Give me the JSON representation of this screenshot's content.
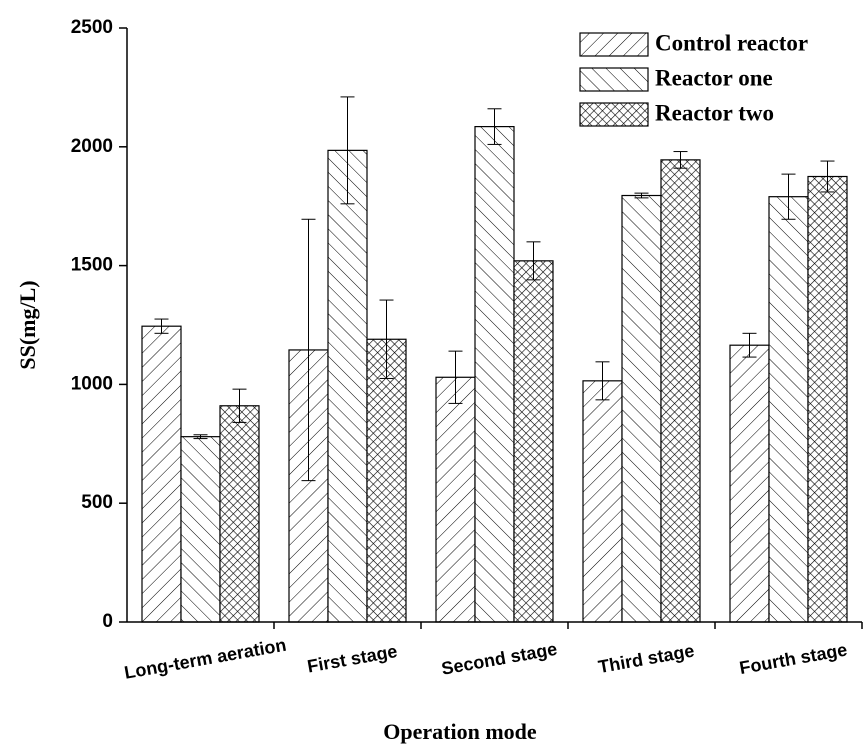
{
  "chart_data": {
    "type": "bar",
    "x_label": "Operation mode",
    "y_label": "SS(mg/L)",
    "categories": [
      "Long-term aeration",
      "First stage",
      "Second stage",
      "Third stage",
      "Fourth stage"
    ],
    "series": [
      {
        "name": "Control reactor",
        "color": "#000000",
        "pattern": "diagonal-up",
        "values": [
          1245,
          1145,
          1030,
          1015,
          1165
        ],
        "errors": [
          30,
          550,
          110,
          80,
          50
        ]
      },
      {
        "name": "Reactor one",
        "color": "#000000",
        "pattern": "diagonal-down",
        "values": [
          780,
          1985,
          2085,
          1795,
          1790
        ],
        "errors": [
          8,
          225,
          75,
          10,
          95
        ]
      },
      {
        "name": "Reactor two",
        "color": "#000000",
        "pattern": "crosshatch",
        "values": [
          910,
          1190,
          1520,
          1945,
          1875
        ],
        "errors": [
          70,
          165,
          80,
          35,
          65
        ]
      }
    ],
    "ylim": [
      0,
      2500
    ],
    "yticks": [
      0,
      500,
      1000,
      1500,
      2000,
      2500
    ],
    "legend": "upper-right",
    "grid": false
  }
}
